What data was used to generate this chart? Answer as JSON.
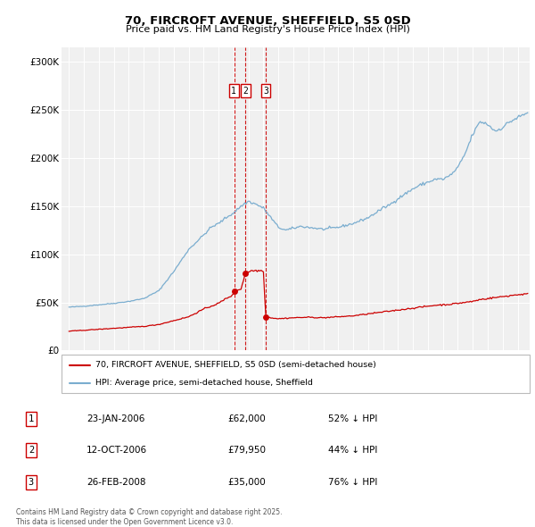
{
  "title": "70, FIRCROFT AVENUE, SHEFFIELD, S5 0SD",
  "subtitle": "Price paid vs. HM Land Registry's House Price Index (HPI)",
  "legend_line1": "70, FIRCROFT AVENUE, SHEFFIELD, S5 0SD (semi-detached house)",
  "legend_line2": "HPI: Average price, semi-detached house, Sheffield",
  "red_color": "#cc0000",
  "blue_color": "#7aadcf",
  "transactions": [
    {
      "label": "1",
      "date_num": 2006.07,
      "price": 62000,
      "note": "23-JAN-2006",
      "price_str": "£62,000",
      "pct": "52% ↓ HPI"
    },
    {
      "label": "2",
      "date_num": 2006.79,
      "price": 79950,
      "note": "12-OCT-2006",
      "price_str": "£79,950",
      "pct": "44% ↓ HPI"
    },
    {
      "label": "3",
      "date_num": 2008.15,
      "price": 35000,
      "note": "26-FEB-2008",
      "price_str": "£35,000",
      "pct": "76% ↓ HPI"
    }
  ],
  "footnote": "Contains HM Land Registry data © Crown copyright and database right 2025.\nThis data is licensed under the Open Government Licence v3.0.",
  "ylim": [
    0,
    315000
  ],
  "xlim_start": 1994.5,
  "xlim_end": 2025.8,
  "background_color": "#f0f0f0",
  "grid_color": "#ffffff",
  "hpi_waypoints_x": [
    1995.0,
    1996.0,
    1997.0,
    1998.0,
    1999.0,
    2000.0,
    2001.0,
    2002.0,
    2003.0,
    2004.0,
    2004.5,
    2005.0,
    2005.5,
    2006.0,
    2006.5,
    2007.0,
    2007.5,
    2008.0,
    2008.5,
    2009.0,
    2009.5,
    2010.0,
    2010.5,
    2011.0,
    2012.0,
    2013.0,
    2014.0,
    2015.0,
    2016.0,
    2016.5,
    2017.0,
    2017.5,
    2018.0,
    2018.5,
    2019.0,
    2019.5,
    2020.0,
    2020.5,
    2021.0,
    2021.5,
    2022.0,
    2022.5,
    2023.0,
    2023.5,
    2024.0,
    2024.5,
    2025.0,
    2025.8
  ],
  "hpi_waypoints_y": [
    45000,
    46000,
    47500,
    49000,
    51000,
    54000,
    62000,
    82000,
    105000,
    120000,
    128000,
    132000,
    138000,
    143000,
    150000,
    155000,
    152000,
    148000,
    138000,
    128000,
    125000,
    127000,
    129000,
    128000,
    126000,
    128000,
    132000,
    138000,
    148000,
    152000,
    158000,
    163000,
    168000,
    172000,
    175000,
    178000,
    178000,
    182000,
    190000,
    205000,
    225000,
    238000,
    235000,
    228000,
    232000,
    238000,
    242000,
    248000
  ],
  "red_waypoints_x": [
    1995.0,
    1996.0,
    1997.0,
    1998.0,
    1999.0,
    2000.0,
    2001.0,
    2002.0,
    2003.0,
    2004.0,
    2004.5,
    2005.0,
    2005.5,
    2006.0,
    2006.07,
    2006.5,
    2006.79,
    2006.85,
    2007.0,
    2007.3,
    2008.0,
    2008.15,
    2008.5,
    2009.0,
    2009.5,
    2010.0,
    2011.0,
    2012.0,
    2013.0,
    2014.0,
    2015.0,
    2016.0,
    2017.0,
    2018.0,
    2018.5,
    2019.0,
    2019.5,
    2020.0,
    2020.5,
    2021.0,
    2021.5,
    2022.0,
    2022.5,
    2023.0,
    2023.5,
    2024.0,
    2024.5,
    2025.0,
    2025.8
  ],
  "red_waypoints_y": [
    20000,
    21000,
    22000,
    23000,
    24000,
    25000,
    27000,
    31000,
    35000,
    43000,
    46000,
    49000,
    54000,
    58000,
    62000,
    64000,
    79950,
    82000,
    82000,
    83000,
    83000,
    35000,
    34000,
    33000,
    33500,
    34000,
    34500,
    34000,
    35000,
    36000,
    38000,
    40000,
    42000,
    44000,
    45000,
    46000,
    47000,
    47500,
    48000,
    49000,
    50000,
    51000,
    53000,
    54000,
    55000,
    56000,
    57000,
    58000,
    59000
  ]
}
